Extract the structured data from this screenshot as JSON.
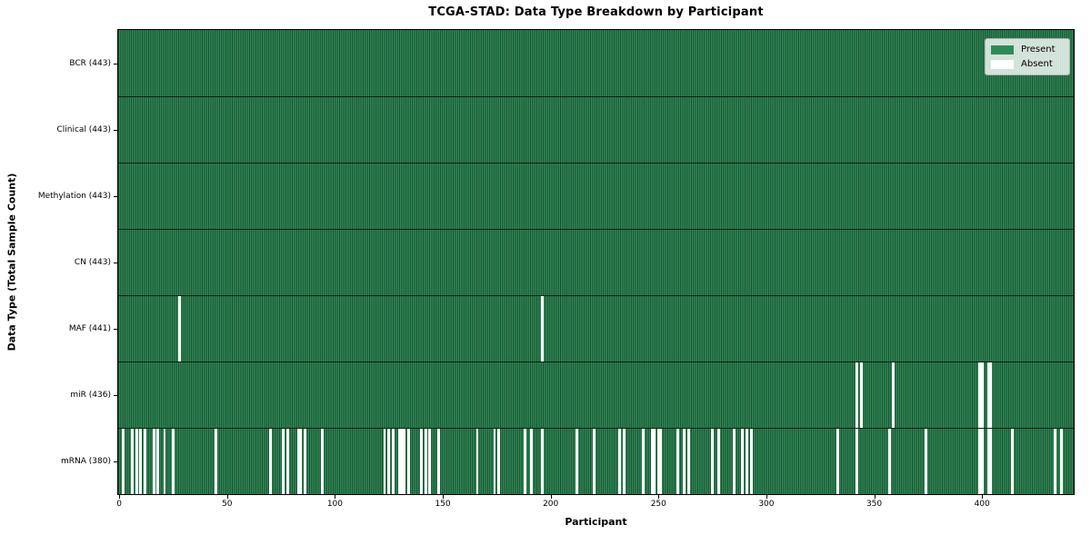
{
  "chart_data": {
    "type": "heatmap",
    "title": "TCGA-STAD: Data Type Breakdown by Participant",
    "xlabel": "Participant",
    "ylabel": "Data Type (Total Sample Count)",
    "n_participants": 443,
    "xlim": [
      0,
      443
    ],
    "x_ticks": [
      0,
      50,
      100,
      150,
      200,
      250,
      300,
      350,
      400
    ],
    "grid": false,
    "legend": {
      "position": "upper right",
      "entries": [
        {
          "label": "Present",
          "color": "#2e8b57"
        },
        {
          "label": "Absent",
          "color": "#ffffff"
        }
      ]
    },
    "rows": [
      {
        "label": "BCR",
        "count": 443,
        "absent": []
      },
      {
        "label": "Clinical",
        "count": 443,
        "absent": []
      },
      {
        "label": "Methylation",
        "count": 443,
        "absent": []
      },
      {
        "label": "CN",
        "count": 443,
        "absent": []
      },
      {
        "label": "MAF",
        "count": 441,
        "absent": [
          28,
          196
        ]
      },
      {
        "label": "miR",
        "count": 436,
        "absent": [
          342,
          344,
          359,
          399,
          400,
          403,
          404
        ]
      },
      {
        "label": "mRNA",
        "count": 380,
        "absent": [
          2,
          6,
          8,
          10,
          12,
          16,
          18,
          21,
          25,
          45,
          70,
          76,
          78,
          83,
          84,
          86,
          94,
          123,
          125,
          127,
          130,
          131,
          132,
          134,
          140,
          142,
          144,
          148,
          166,
          174,
          176,
          188,
          191,
          196,
          212,
          220,
          232,
          234,
          243,
          247,
          248,
          250,
          251,
          259,
          262,
          264,
          275,
          278,
          285,
          289,
          291,
          293,
          333,
          342,
          357,
          374,
          399,
          400,
          403,
          404,
          414,
          434,
          437
        ]
      }
    ],
    "colors": {
      "present": "#2e8b57",
      "present_edge": "#1b4a2e",
      "absent": "#ffffff",
      "row_separator": "#0d1f14",
      "spine": "#000000",
      "legend_border": "#b0b0b0"
    },
    "row_label_format": "{label} ({count})"
  }
}
